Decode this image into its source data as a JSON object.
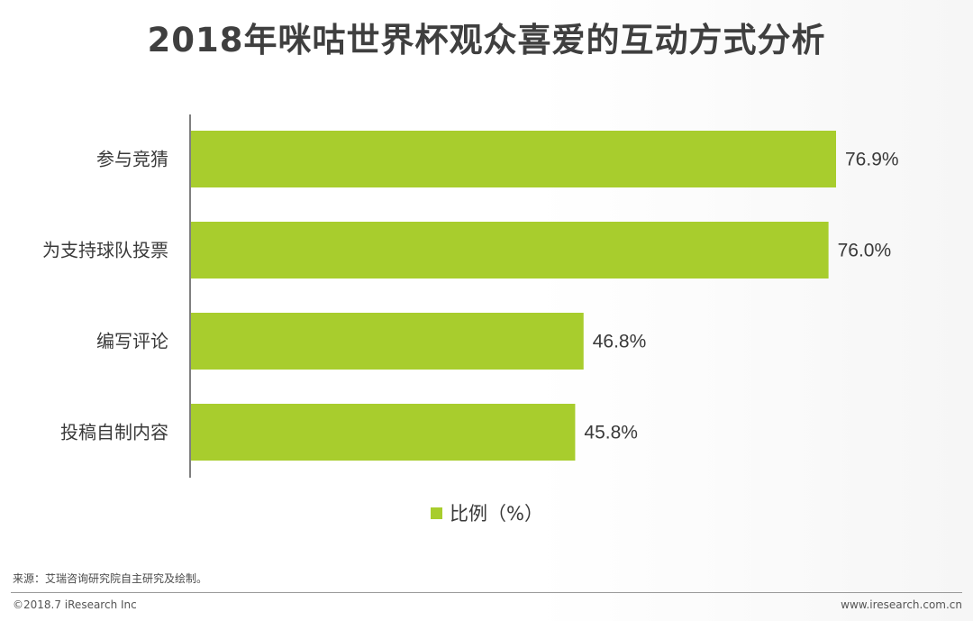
{
  "page": {
    "title": "2018年咪咕世界杯观众喜爱的互动方式分析",
    "source": "来源：艾瑞咨询研究院自主研究及绘制。",
    "copyright": "©2018.7 iResearch Inc",
    "website": "www.iresearch.com.cn"
  },
  "chart_data": {
    "type": "bar",
    "orientation": "horizontal",
    "title": "2018年咪咕世界杯观众喜爱的互动方式分析",
    "categories": [
      "参与竞猜",
      "为支持球队投票",
      "编写评论",
      "投稿自制内容"
    ],
    "series": [
      {
        "name": "比例（%）",
        "values": [
          76.9,
          76.0,
          46.8,
          45.8
        ],
        "labels": [
          "76.9%",
          "76.0%",
          "46.8%",
          "45.8%"
        ],
        "color": "#a8cd2d"
      }
    ],
    "xlim": [
      0,
      100
    ],
    "grid": false,
    "legend_position": "bottom-center",
    "xlabel": "",
    "ylabel": ""
  }
}
